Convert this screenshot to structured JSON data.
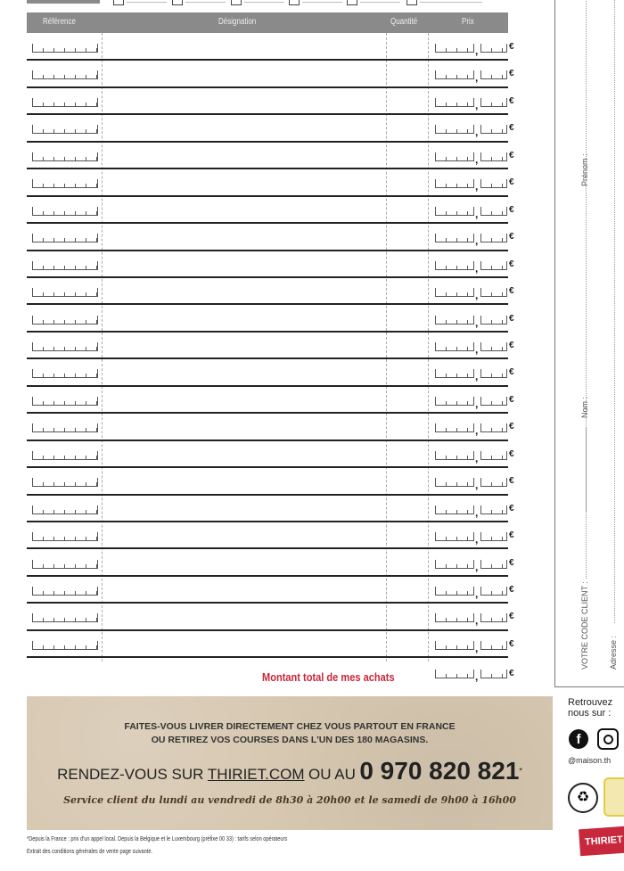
{
  "table": {
    "headers": {
      "reference": "Référence",
      "designation": "Désignation",
      "quantity": "Quantité",
      "price": "Prix"
    },
    "row_count": 23,
    "currency": "€",
    "decimal_separator": ","
  },
  "total": {
    "label": "Montant total de mes achats",
    "currency": "€"
  },
  "client_panel": {
    "code": "VOTRE CODE CLIENT :",
    "nom": "Nom :",
    "prenom": "Prénom :",
    "adresse": "Adresse :"
  },
  "banner": {
    "line1": "FAITES-VOUS LIVRER DIRECTEMENT CHEZ VOUS PARTOUT EN FRANCE",
    "line2": "OU RETIREZ VOS COURSES DANS L'UN DES 180 MAGASINS.",
    "rdv": "RENDEZ-VOUS SUR",
    "url": "THIRIET.COM",
    "ou_au": "OU AU",
    "phone": "0 970 820 821",
    "phone_mark": "*",
    "service": "Service client du lundi au vendredi de 8h30 à 20h00 et le samedi de 9h00 à 16h00",
    "background": "#d6c7b0"
  },
  "footnotes": {
    "note1": "*Depuis la France : prix d'un appel local. Depuis la Belgique et le Luxembourg (préfixe 00 33) : tarifs selon opérateurs",
    "note2": "Extrait des conditions générales de vente page suivante."
  },
  "social": {
    "label1": "Retrouvez",
    "label2": "nous sur :",
    "handle": "@maison.th",
    "icons": [
      "facebook-icon",
      "instagram-icon"
    ]
  },
  "logo": {
    "text": "THIRIET",
    "color": "#c8283c"
  },
  "colors": {
    "header": "#8a8a8a",
    "total_label": "#c8283c"
  }
}
